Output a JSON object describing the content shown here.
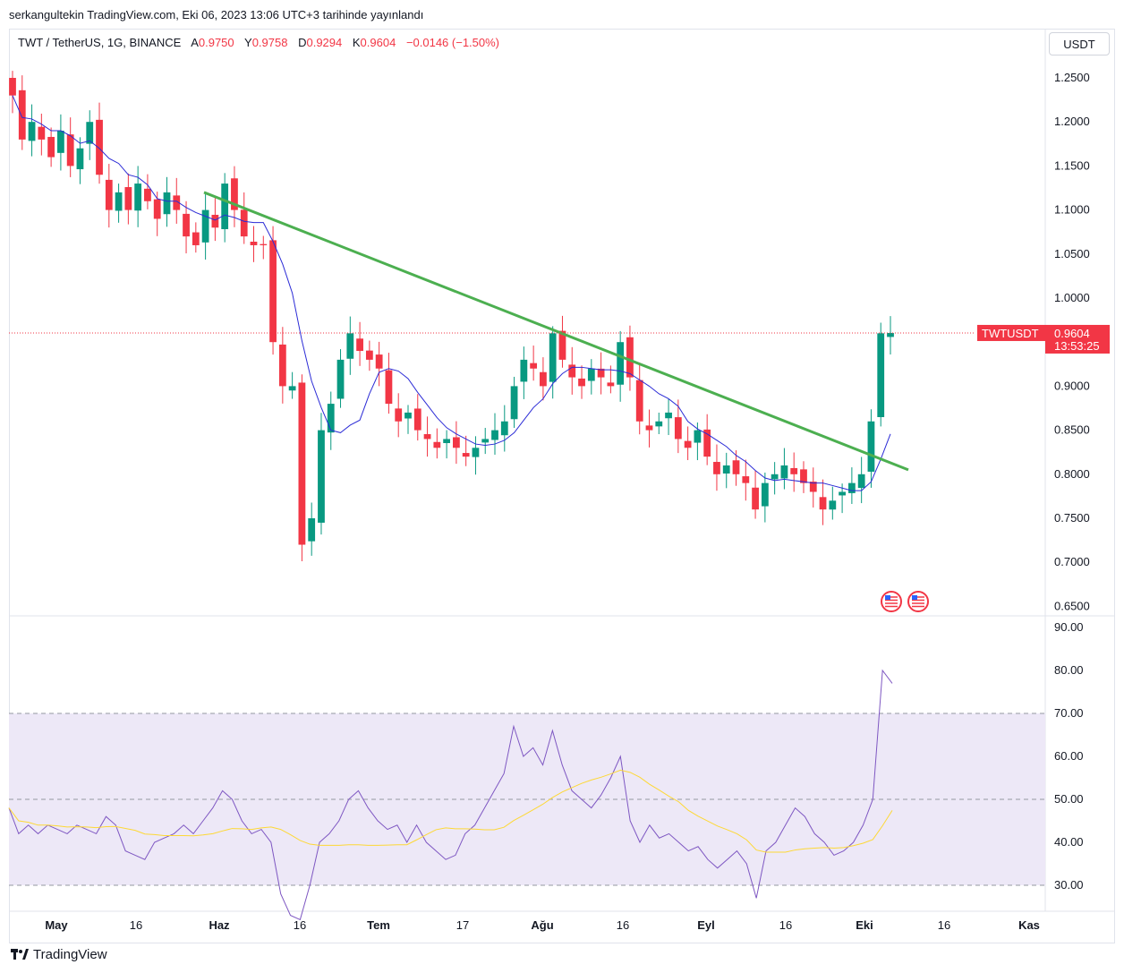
{
  "header": {
    "publish_line": "serkangultekin TradingView.com, Eki 06, 2023 13:06 UTC+3 tarihinde yayınlandı"
  },
  "legend": {
    "symbol": "TWT / TetherUS, 1G, BINANCE",
    "open_key": "A",
    "open": "0.9750",
    "high_key": "Y",
    "high": "0.9758",
    "low_key": "D",
    "low": "0.9294",
    "close_key": "K",
    "close": "0.9604",
    "change": "−0.0146 (−1.50%)"
  },
  "currency_button": "USDT",
  "price_tag": {
    "symbol": "TWTUSDT",
    "price": "0.9604",
    "countdown": "13:53:25"
  },
  "brand": "TradingView",
  "colors": {
    "up": "#089981",
    "down": "#f23645",
    "ma": "#2b2bd6",
    "trendline": "#4caf50",
    "rsi": "#7e57c2",
    "rsi_ma": "#fdd835",
    "rsi_band": "#ede8f7"
  },
  "chart_data": [
    {
      "type": "candlestick",
      "title": "TWT / TetherUS, 1G, BINANCE",
      "ylim": [
        0.64,
        1.28
      ],
      "y_ticks": [
        "1.2500",
        "1.2000",
        "1.1500",
        "1.1000",
        "1.0500",
        "1.0000",
        "0.9500",
        "0.9000",
        "0.8500",
        "0.8000",
        "0.7500",
        "0.7000",
        "0.6500"
      ],
      "x_ticks": [
        "May",
        "16",
        "Haz",
        "16",
        "Tem",
        "17",
        "Ağu",
        "16",
        "Eyl",
        "16",
        "Eki",
        "16",
        "Kas"
      ],
      "closes_approx": [
        1.23,
        1.18,
        1.2,
        1.18,
        1.16,
        1.19,
        1.15,
        1.17,
        1.2,
        1.14,
        1.1,
        1.12,
        1.1,
        1.13,
        1.11,
        1.09,
        1.12,
        1.1,
        1.07,
        1.06,
        1.1,
        1.08,
        1.13,
        1.1,
        1.07,
        1.06,
        1.06,
        0.95,
        0.9,
        0.9,
        0.72,
        0.75,
        0.85,
        0.88,
        0.93,
        0.96,
        0.94,
        0.93,
        0.92,
        0.88,
        0.86,
        0.87,
        0.85,
        0.84,
        0.83,
        0.84,
        0.83,
        0.82,
        0.83,
        0.84,
        0.85,
        0.86,
        0.9,
        0.93,
        0.92,
        0.9,
        0.96,
        0.93,
        0.91,
        0.9,
        0.92,
        0.91,
        0.9,
        0.95,
        0.91,
        0.86,
        0.85,
        0.86,
        0.87,
        0.84,
        0.83,
        0.85,
        0.82,
        0.8,
        0.81,
        0.8,
        0.79,
        0.76,
        0.79,
        0.8,
        0.81,
        0.8,
        0.79,
        0.78,
        0.76,
        0.77,
        0.78,
        0.79,
        0.8,
        0.86,
        0.96,
        0.9604
      ],
      "ma_overlay": "blue line",
      "trendline": {
        "from": [
          "2023-06-01",
          1.12
        ],
        "to": [
          "2023-10-09",
          0.805
        ]
      },
      "last_price": 0.9604
    },
    {
      "type": "line",
      "title": "RSI",
      "ylim": [
        25,
        93
      ],
      "y_ticks": [
        "90.00",
        "80.00",
        "70.00",
        "60.00",
        "50.00",
        "40.00",
        "30.00"
      ],
      "bands": [
        30,
        70
      ],
      "midline": 50,
      "values_approx": [
        48,
        42,
        44,
        42,
        44,
        43,
        42,
        44,
        43,
        42,
        46,
        44,
        38,
        37,
        36,
        40,
        41,
        42,
        44,
        42,
        45,
        48,
        52,
        50,
        45,
        42,
        43,
        40,
        28,
        23,
        22,
        30,
        40,
        42,
        45,
        50,
        52,
        48,
        45,
        43,
        44,
        40,
        44,
        40,
        38,
        36,
        37,
        42,
        44,
        48,
        52,
        56,
        67,
        60,
        62,
        58,
        66,
        58,
        52,
        50,
        48,
        51,
        55,
        60,
        45,
        40,
        44,
        41,
        42,
        40,
        38,
        39,
        36,
        34,
        36,
        38,
        35,
        27,
        38,
        40,
        44,
        48,
        46,
        42,
        40,
        37,
        38,
        40,
        44,
        50,
        80,
        77
      ]
    }
  ]
}
